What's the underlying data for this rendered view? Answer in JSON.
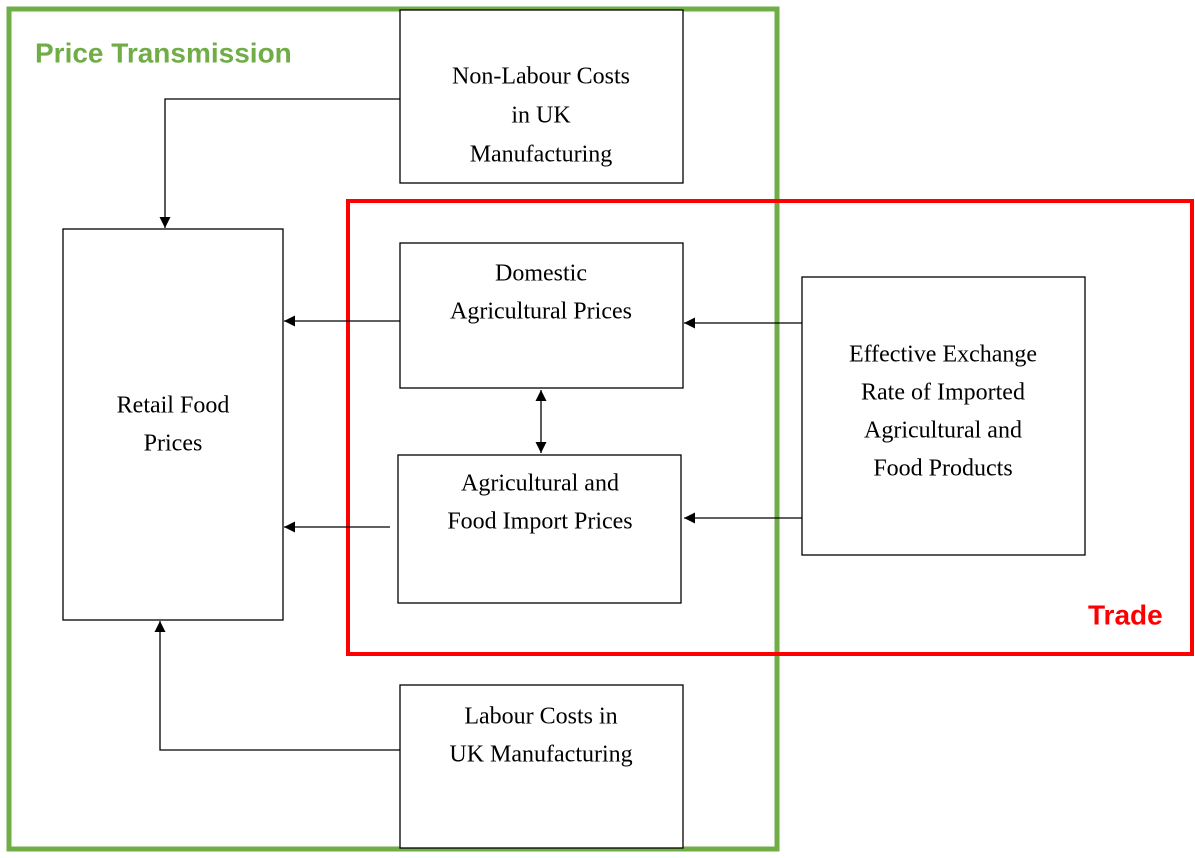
{
  "groups": {
    "price_transmission": "Price Transmission",
    "trade": "Trade"
  },
  "nodes": [
    {
      "lines": [
        "Non-Labour Costs",
        "in UK",
        "Manufacturing"
      ]
    },
    {
      "lines": [
        "Retail Food",
        "Prices"
      ]
    },
    {
      "lines": [
        "Domestic",
        "Agricultural Prices"
      ]
    },
    {
      "lines": [
        "Agricultural and",
        "Food Import Prices"
      ]
    },
    {
      "lines": [
        "Effective Exchange",
        "Rate of Imported",
        "Agricultural and",
        "Food Products"
      ]
    },
    {
      "lines": [
        "Labour Costs in",
        "UK Manufacturing"
      ]
    }
  ]
}
